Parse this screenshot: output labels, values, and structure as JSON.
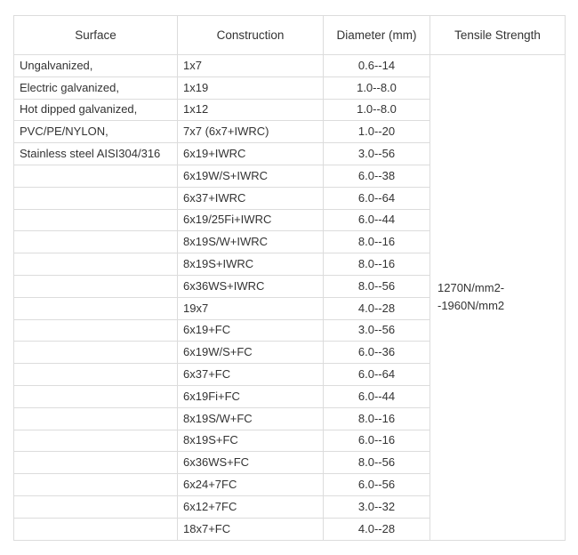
{
  "headers": [
    "Surface",
    "Construction",
    "Diameter (mm)",
    "Tensile Strength"
  ],
  "surface": [
    "Ungalvanized,",
    "Electric galvanized,",
    "Hot dipped galvanized,",
    "PVC/PE/NYLON,",
    "Stainless steel AISI304/316"
  ],
  "tensile_strength": [
    "1270N/mm2-",
    "-1960N/mm2"
  ],
  "rows": [
    {
      "construction": "1x7",
      "diameter": "0.6--14"
    },
    {
      "construction": "1x19",
      "diameter": "1.0--8.0"
    },
    {
      "construction": "1x12",
      "diameter": "1.0--8.0"
    },
    {
      "construction": "7x7 (6x7+IWRC)",
      "diameter": "1.0--20"
    },
    {
      "construction": "6x19+IWRC",
      "diameter": "3.0--56"
    },
    {
      "construction": "6x19W/S+IWRC",
      "diameter": "6.0--38"
    },
    {
      "construction": "6x37+IWRC",
      "diameter": "6.0--64"
    },
    {
      "construction": "6x19/25Fi+IWRC",
      "diameter": "6.0--44"
    },
    {
      "construction": "8x19S/W+IWRC",
      "diameter": "8.0--16"
    },
    {
      "construction": "8x19S+IWRC",
      "diameter": "8.0--16"
    },
    {
      "construction": "6x36WS+IWRC",
      "diameter": "8.0--56"
    },
    {
      "construction": "19x7",
      "diameter": "4.0--28"
    },
    {
      "construction": "6x19+FC",
      "diameter": "3.0--56"
    },
    {
      "construction": "6x19W/S+FC",
      "diameter": "6.0--36"
    },
    {
      "construction": "6x37+FC",
      "diameter": "6.0--64"
    },
    {
      "construction": "6x19Fi+FC",
      "diameter": "6.0--44"
    },
    {
      "construction": "8x19S/W+FC",
      "diameter": "8.0--16"
    },
    {
      "construction": "8x19S+FC",
      "diameter": "6.0--16"
    },
    {
      "construction": "6x36WS+FC",
      "diameter": "8.0--56"
    },
    {
      "construction": "6x24+7FC",
      "diameter": "6.0--56"
    },
    {
      "construction": "6x12+7FC",
      "diameter": "3.0--32"
    },
    {
      "construction": "18x7+FC",
      "diameter": "4.0--28"
    }
  ]
}
